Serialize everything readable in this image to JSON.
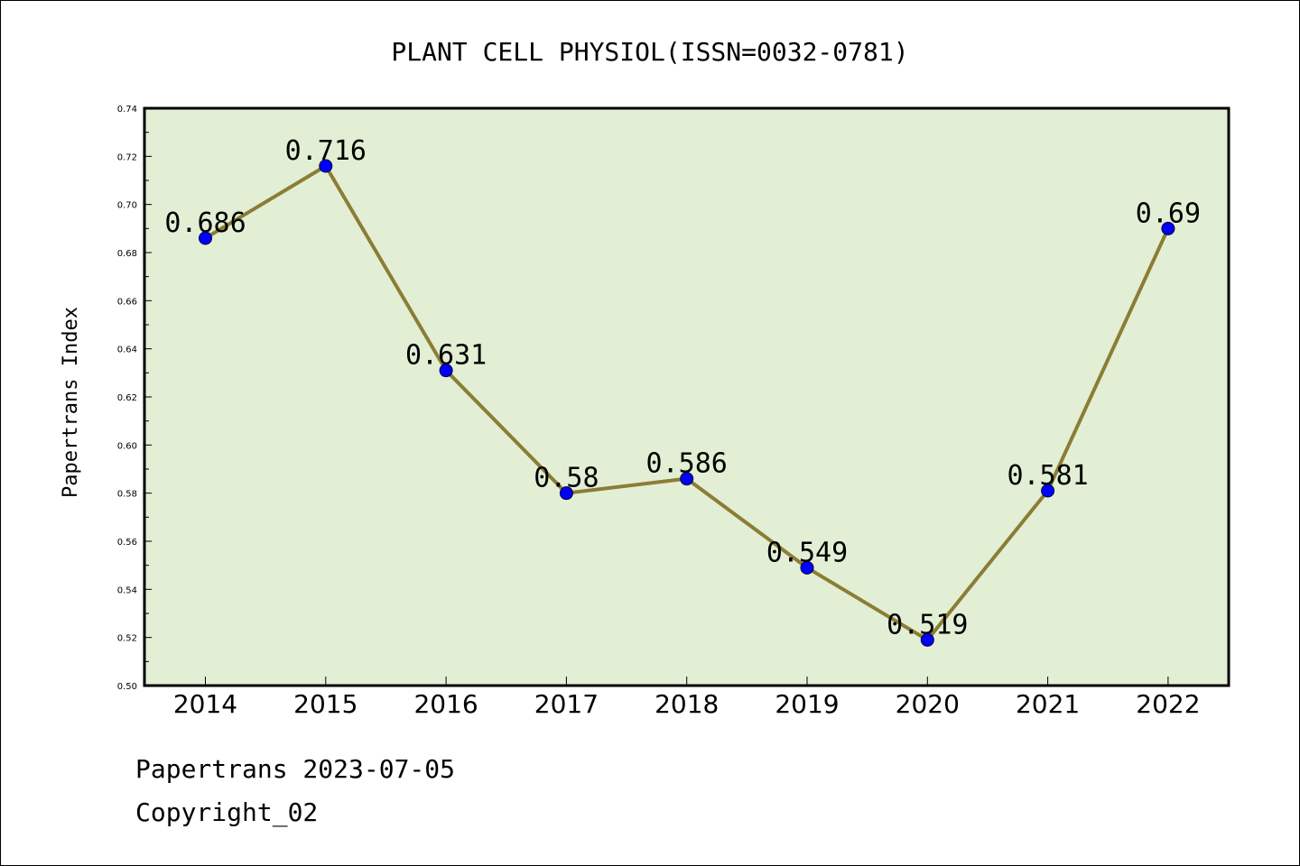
{
  "chart_data": {
    "type": "line",
    "title": "PLANT CELL PHYSIOL(ISSN=0032-0781)",
    "xlabel": "",
    "ylabel": "Papertrans Index",
    "categories": [
      "2014",
      "2015",
      "2016",
      "2017",
      "2018",
      "2019",
      "2020",
      "2021",
      "2022"
    ],
    "series": [
      {
        "values": [
          0.686,
          0.716,
          0.631,
          0.58,
          0.586,
          0.549,
          0.519,
          0.581,
          0.69
        ],
        "labels": [
          "0.686",
          "0.716",
          "0.631",
          "0.58",
          "0.586",
          "0.549",
          "0.519",
          "0.581",
          "0.69"
        ]
      }
    ],
    "ylim": [
      0.5,
      0.74
    ],
    "yticks": [
      "0.50",
      "0.52",
      "0.54",
      "0.56",
      "0.58",
      "0.60",
      "0.62",
      "0.64",
      "0.66",
      "0.68",
      "0.70",
      "0.72",
      "0.74"
    ],
    "grid": false,
    "colors": {
      "plot_background": "#e2efd5",
      "line": "#8b7d35",
      "marker": "#0000ff"
    }
  },
  "footer": {
    "date_text": "Papertrans 2023-07-05",
    "copyright_text": "Copyright_02"
  }
}
